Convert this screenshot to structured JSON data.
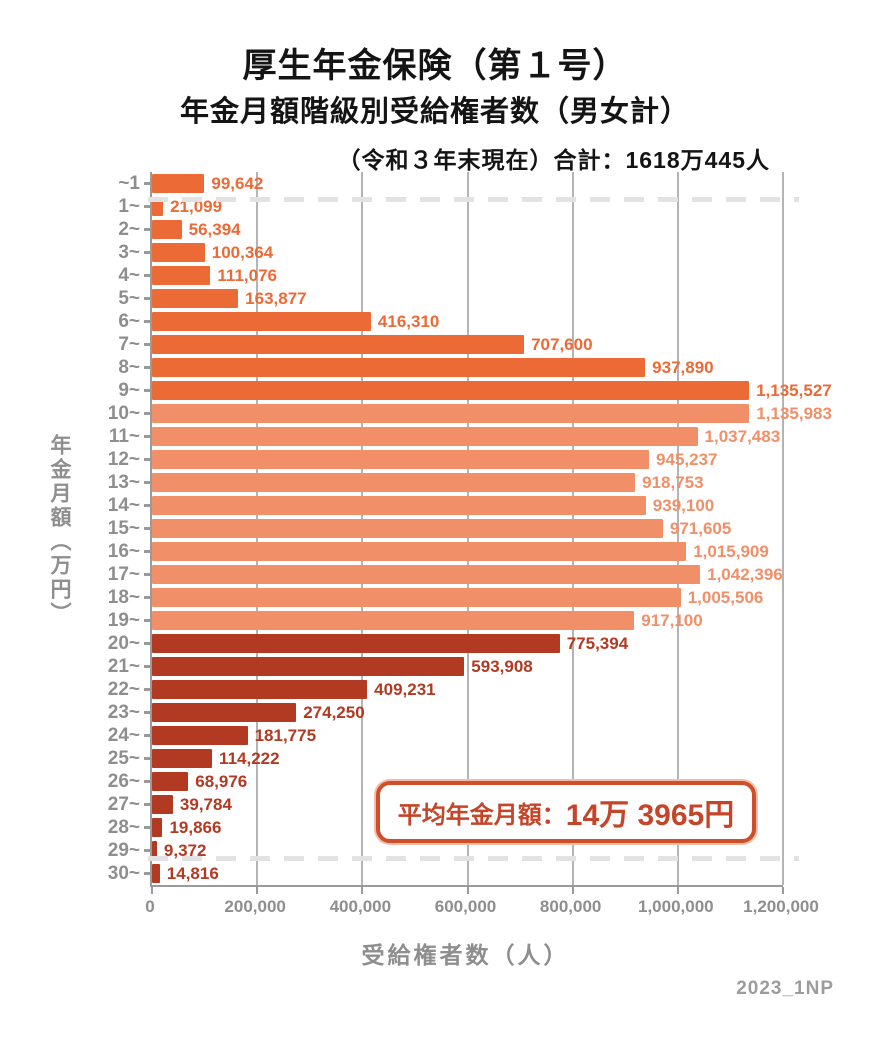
{
  "header": {
    "title": "厚生年金保険（第１号）",
    "subtitle": "年金月額階級別受給権者数（男女計）",
    "note": "（令和３年末現在）合計：1618万445人"
  },
  "annotation": {
    "label": "平均年金月額：",
    "value": "14万 3965円"
  },
  "watermark": "2023_1NP",
  "chart_data": {
    "type": "bar",
    "orientation": "horizontal",
    "title": "厚生年金保険（第１号） 年金月額階級別受給権者数（男女計）",
    "xlabel": "受給権者数（人）",
    "ylabel": "年金月額（万円）",
    "xlim": [
      0,
      1200000
    ],
    "grid": "vertical",
    "x_tick_labels": [
      "0",
      "200,000",
      "400,000",
      "600,000",
      "800,000",
      "1,000,000",
      "1,200,000"
    ],
    "categories": [
      "~1",
      "1~",
      "2~",
      "3~",
      "4~",
      "5~",
      "6~",
      "7~",
      "8~",
      "9~",
      "10~",
      "11~",
      "12~",
      "13~",
      "14~",
      "15~",
      "16~",
      "17~",
      "18~",
      "19~",
      "20~",
      "21~",
      "22~",
      "23~",
      "24~",
      "25~",
      "26~",
      "27~",
      "28~",
      "29~",
      "30~"
    ],
    "values": [
      99642,
      21099,
      56394,
      100364,
      111076,
      163877,
      416310,
      707600,
      937890,
      1135527,
      1135983,
      1037483,
      945237,
      918753,
      939100,
      971605,
      1015909,
      1042396,
      1005506,
      917100,
      775394,
      593908,
      409231,
      274250,
      181775,
      114222,
      68976,
      39784,
      19866,
      9372,
      14816
    ],
    "value_labels": [
      "99,642",
      "21,099",
      "56,394",
      "100,364",
      "111,076",
      "163,877",
      "416,310",
      "707,600",
      "937,890",
      "1,135,527",
      "1,135,983",
      "1,037,483",
      "945,237",
      "918,753",
      "939,100",
      "971,605",
      "1,015,909",
      "1,042,396",
      "1,005,506",
      "917,100",
      "775,394",
      "593,908",
      "409,231",
      "274,250",
      "181,775",
      "114,222",
      "68,976",
      "39,784",
      "19,866",
      "9,372",
      "14,816"
    ],
    "bar_groups": [
      "orange",
      "orange",
      "orange",
      "orange",
      "orange",
      "orange",
      "orange",
      "orange",
      "orange",
      "orange",
      "salmon",
      "salmon",
      "salmon",
      "salmon",
      "salmon",
      "salmon",
      "salmon",
      "salmon",
      "salmon",
      "salmon",
      "red",
      "red",
      "red",
      "red",
      "red",
      "red",
      "red",
      "red",
      "red",
      "red",
      "red"
    ],
    "group_colors": {
      "orange": "#EC6A36",
      "salmon": "#F18F68",
      "red": "#B23A23"
    },
    "dashed_lines_after_category_index": [
      0,
      29
    ],
    "total": "1618万445人",
    "average_monthly_amount": "14万 3965円"
  }
}
